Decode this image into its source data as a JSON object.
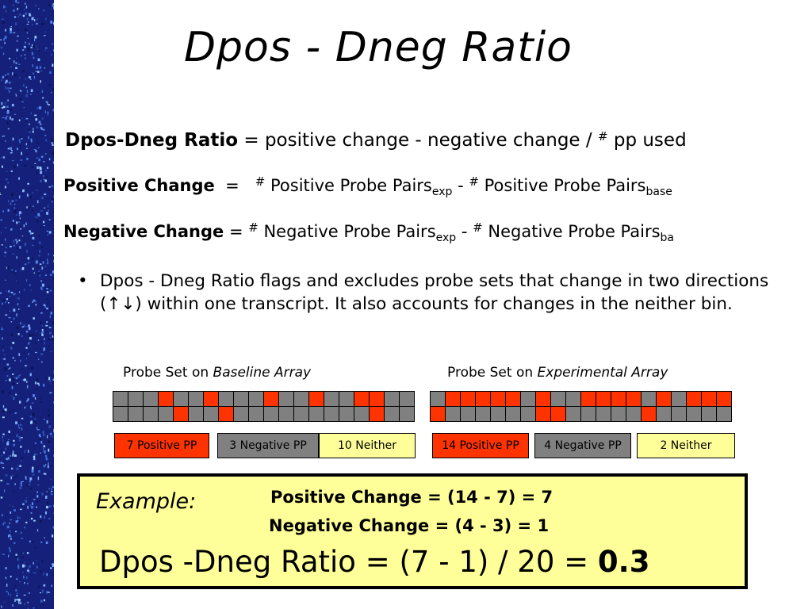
{
  "colors": {
    "stripe": "#15207a",
    "positive": "#ff3300",
    "negative": "#808080",
    "neither": "#ffff99",
    "example_bg": "#ffff99"
  },
  "title": "Dpos - Dneg Ratio",
  "definition": {
    "term": "Dpos-Dneg Ratio",
    "text_before_hash": " = positive change - negative change / ",
    "hash": "#",
    "text_after_hash": " pp used"
  },
  "positive_change": {
    "term": "Positive Change",
    "eq": "  =   ",
    "hash1": "#",
    "part1": " Positive Probe Pairs",
    "sub1": "exp",
    "minus": " - ",
    "hash2": "#",
    "part2": " Positive Probe Pairs",
    "sub2": "base"
  },
  "negative_change": {
    "term": "Negative Change",
    "eq": " = ",
    "hash1": "#",
    "part1": " Negative Probe Pairs",
    "sub1": "exp",
    "minus": " - ",
    "hash2": "#",
    "part2": " Negative Probe Pairs",
    "sub2": "ba"
  },
  "bullet": {
    "dot": "•",
    "text_a": "Dpos - Dneg Ratio flags and excludes probe sets that change in two directions (",
    "arrows": "↑↓",
    "text_b": ") within one transcript. It also accounts for changes in the neither bin."
  },
  "baseline": {
    "caption_prefix": "Probe Set on ",
    "caption_italic": "Baseline Array",
    "grid": [
      "NNNPNNPNNNPNNPNNPPNN",
      "NNNNPNNPNNNNNNNNNPNN"
    ],
    "legend": [
      {
        "text": "7 Positive PP",
        "type": "positive"
      },
      {
        "text": "3 Negative PP",
        "type": "negative"
      },
      {
        "text": "10 Neither",
        "type": "neither"
      }
    ]
  },
  "experimental": {
    "caption_prefix": "Probe Set on ",
    "caption_italic": "Experimental Array",
    "grid": [
      "NPPPPPNPNNPPPPNPNPPP",
      "PNNNNNNPPNNNNNPNNNNN"
    ],
    "legend": [
      {
        "text": "14 Positive PP",
        "type": "positive"
      },
      {
        "text": "4 Negative PP",
        "type": "negative"
      },
      {
        "text": "2 Neither",
        "type": "neither"
      }
    ]
  },
  "example": {
    "label": "Example:",
    "positive": "Positive Change = (14 - 7) = 7",
    "negative": "Negative Change = (4 - 3) = 1",
    "ratio_text": "Dpos -Dneg Ratio = (7 - 1) / 20 = ",
    "ratio_value": "0.3"
  }
}
